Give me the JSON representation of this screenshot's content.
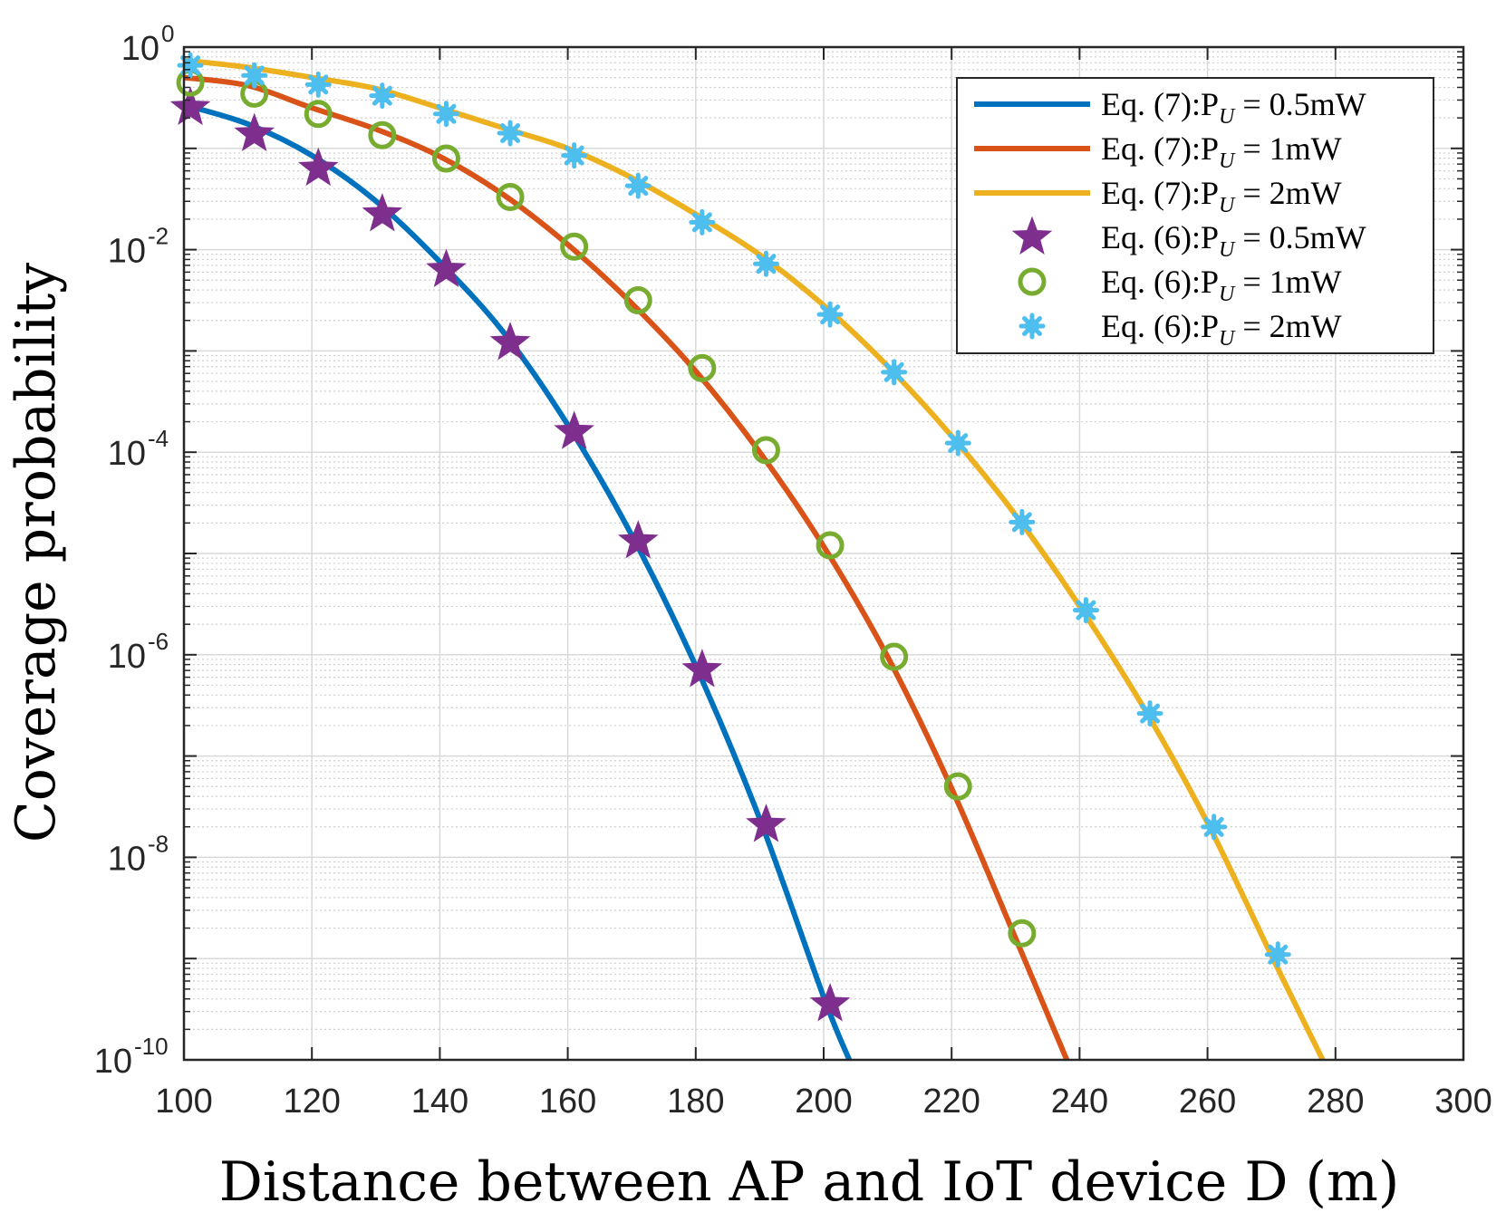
{
  "chart_data": {
    "type": "line",
    "title": "",
    "xlabel": "Distance between AP and IoT device D (m)",
    "ylabel": "Coverage probability",
    "xlim": [
      100,
      300
    ],
    "ylim_log10": [
      -10,
      0
    ],
    "yscale": "log",
    "grid": true,
    "minor_grid": true,
    "legend_position": "top-right",
    "x_ticks": [
      100,
      120,
      140,
      160,
      180,
      200,
      220,
      240,
      260,
      280,
      300
    ],
    "y_ticks": [
      {
        "base": "10",
        "exp": "0",
        "log10": 0
      },
      {
        "base": "10",
        "exp": "-2",
        "log10": -2
      },
      {
        "base": "10",
        "exp": "-4",
        "log10": -4
      },
      {
        "base": "10",
        "exp": "-6",
        "log10": -6
      },
      {
        "base": "10",
        "exp": "-8",
        "log10": -8
      },
      {
        "base": "10",
        "exp": "-10",
        "log10": -10
      }
    ],
    "series": [
      {
        "name": "Eq. (7):P_U = 0.5mW",
        "legend_label": "Eq. (7):P",
        "legend_sub": "U",
        "legend_tail": " = 0.5mW",
        "kind": "line",
        "color": "#0072BD",
        "x": [
          100,
          110,
          120,
          130,
          140,
          150,
          160,
          170,
          180,
          190,
          200,
          204
        ],
        "log10_y": [
          -0.57,
          -0.76,
          -1.07,
          -1.52,
          -2.12,
          -2.82,
          -3.73,
          -4.82,
          -6.11,
          -7.62,
          -9.38,
          -10.0
        ]
      },
      {
        "name": "Eq. (7):P_U = 1mW",
        "legend_label": "Eq. (7):P",
        "legend_sub": "U",
        "legend_tail": " = 1mW",
        "kind": "line",
        "color": "#D95319",
        "x": [
          100,
          110,
          120,
          130,
          140,
          150,
          160,
          170,
          180,
          190,
          200,
          210,
          220,
          230,
          238
        ],
        "log10_y": [
          -0.3,
          -0.38,
          -0.6,
          -0.81,
          -1.08,
          -1.46,
          -1.95,
          -2.53,
          -3.2,
          -4.0,
          -4.93,
          -6.02,
          -7.32,
          -8.8,
          -10.0
        ]
      },
      {
        "name": "Eq. (7):P_U = 2mW",
        "legend_label": "Eq. (7):P",
        "legend_sub": "U",
        "legend_tail": " = 2mW",
        "kind": "line",
        "color": "#EDB120",
        "x": [
          100,
          110,
          120,
          130,
          140,
          150,
          160,
          170,
          180,
          190,
          200,
          210,
          220,
          230,
          240,
          250,
          260,
          270,
          278
        ],
        "log10_y": [
          -0.13,
          -0.2,
          -0.3,
          -0.41,
          -0.6,
          -0.8,
          -1.0,
          -1.29,
          -1.65,
          -2.05,
          -2.55,
          -3.15,
          -3.84,
          -4.62,
          -5.52,
          -6.52,
          -7.66,
          -8.97,
          -10.0
        ]
      },
      {
        "name": "Eq. (6):P_U = 0.5mW",
        "legend_label": "Eq. (6):P",
        "legend_sub": "U",
        "legend_tail": " = 0.5mW",
        "kind": "marker",
        "marker": "star",
        "color": "#7E2F8E",
        "x": [
          101,
          111,
          121,
          131,
          141,
          151,
          161,
          171,
          181,
          191,
          201
        ],
        "log10_y": [
          -0.6,
          -0.86,
          -1.2,
          -1.65,
          -2.2,
          -2.92,
          -3.8,
          -4.88,
          -6.15,
          -7.68,
          -9.45
        ]
      },
      {
        "name": "Eq. (6):P_U = 1mW",
        "legend_label": "Eq. (6):P",
        "legend_sub": "U",
        "legend_tail": " = 1mW",
        "kind": "marker",
        "marker": "circle",
        "color": "#77AC30",
        "x": [
          101,
          111,
          121,
          131,
          141,
          151,
          161,
          171,
          181,
          191,
          201,
          211,
          221,
          231
        ],
        "log10_y": [
          -0.35,
          -0.46,
          -0.66,
          -0.87,
          -1.1,
          -1.48,
          -1.97,
          -2.5,
          -3.17,
          -3.98,
          -4.92,
          -6.02,
          -7.3,
          -8.75
        ]
      },
      {
        "name": "Eq. (6):P_U = 2mW",
        "legend_label": "Eq. (6):P",
        "legend_sub": "U",
        "legend_tail": " = 2mW",
        "kind": "marker",
        "marker": "asterisk",
        "color": "#4DBEEE",
        "x": [
          101,
          111,
          121,
          131,
          141,
          151,
          161,
          171,
          181,
          191,
          201,
          211,
          221,
          231,
          241,
          251,
          261,
          271
        ],
        "log10_y": [
          -0.18,
          -0.28,
          -0.37,
          -0.48,
          -0.66,
          -0.85,
          -1.07,
          -1.37,
          -1.73,
          -2.14,
          -2.64,
          -3.21,
          -3.91,
          -4.69,
          -5.56,
          -6.58,
          -7.7,
          -8.96
        ]
      }
    ]
  }
}
